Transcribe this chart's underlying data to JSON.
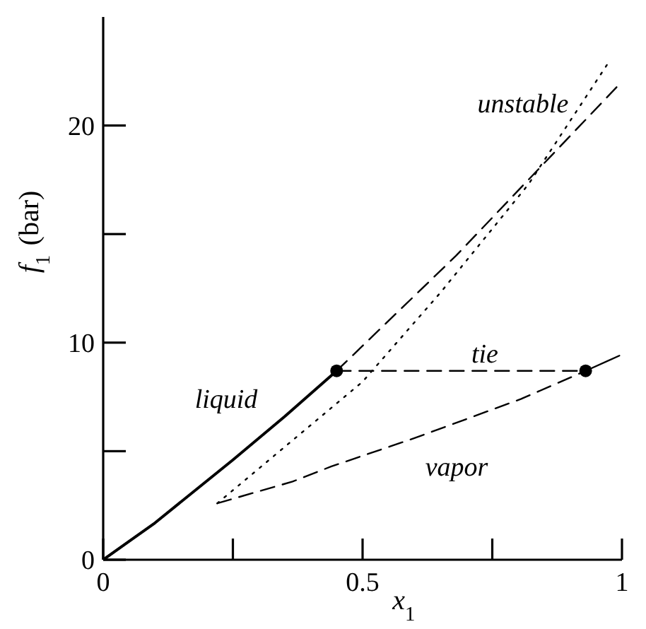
{
  "chart_data": {
    "type": "line",
    "xlabel": "x$_{1}$",
    "ylabel": "f$_{1}$ (bar)",
    "xlim": [
      0,
      1
    ],
    "ylim": [
      0,
      25
    ],
    "xticks": [
      0,
      {
        "value": 0.25,
        "label": null
      },
      0.5,
      {
        "value": 0.75,
        "label": null
      },
      1
    ],
    "yticks": [
      0,
      {
        "value": 5,
        "label": null
      },
      10,
      {
        "value": 15,
        "label": null
      },
      20
    ],
    "series": [
      {
        "color": "#000000",
        "line_style": "solid",
        "x": [
          0,
          0.1,
          0.25,
          0.35,
          0.45
        ],
        "values": [
          0,
          1.7,
          4.6,
          6.6,
          8.7
        ]
      },
      {
        "color": "#000000",
        "line_style": "dashed",
        "x": [
          0.45,
          0.68,
          0.995
        ],
        "values": [
          8.7,
          14.0,
          21.9
        ]
      },
      {
        "color": "#000000",
        "line_style": "dotted",
        "x": [
          0.22,
          0.35,
          0.5,
          0.65,
          0.82,
          0.974
        ],
        "values": [
          2.6,
          5.2,
          8.2,
          12.3,
          17.3,
          22.9
        ]
      },
      {
        "color": "#000000",
        "line_style": "dashed",
        "x": [
          0.22,
          0.365,
          0.44,
          0.6,
          0.805,
          0.93
        ],
        "values": [
          2.6,
          3.6,
          4.3,
          5.6,
          7.4,
          8.7
        ]
      },
      {
        "color": "#000000",
        "line_style": "solid",
        "x": [
          0.93,
          0.995
        ],
        "values": [
          8.7,
          9.4
        ]
      },
      {
        "color": "#000000",
        "line_style": "dashed",
        "x": [
          0.45,
          0.93
        ],
        "values": [
          8.7,
          8.7
        ]
      },
      {
        "type": "scatter",
        "color": "#000000",
        "marker": "circle",
        "x": [
          0.45,
          0.93
        ],
        "values": [
          8.7,
          8.7
        ]
      }
    ],
    "annotations": [
      "liquid",
      "unstable",
      "tie",
      "vapor"
    ]
  }
}
